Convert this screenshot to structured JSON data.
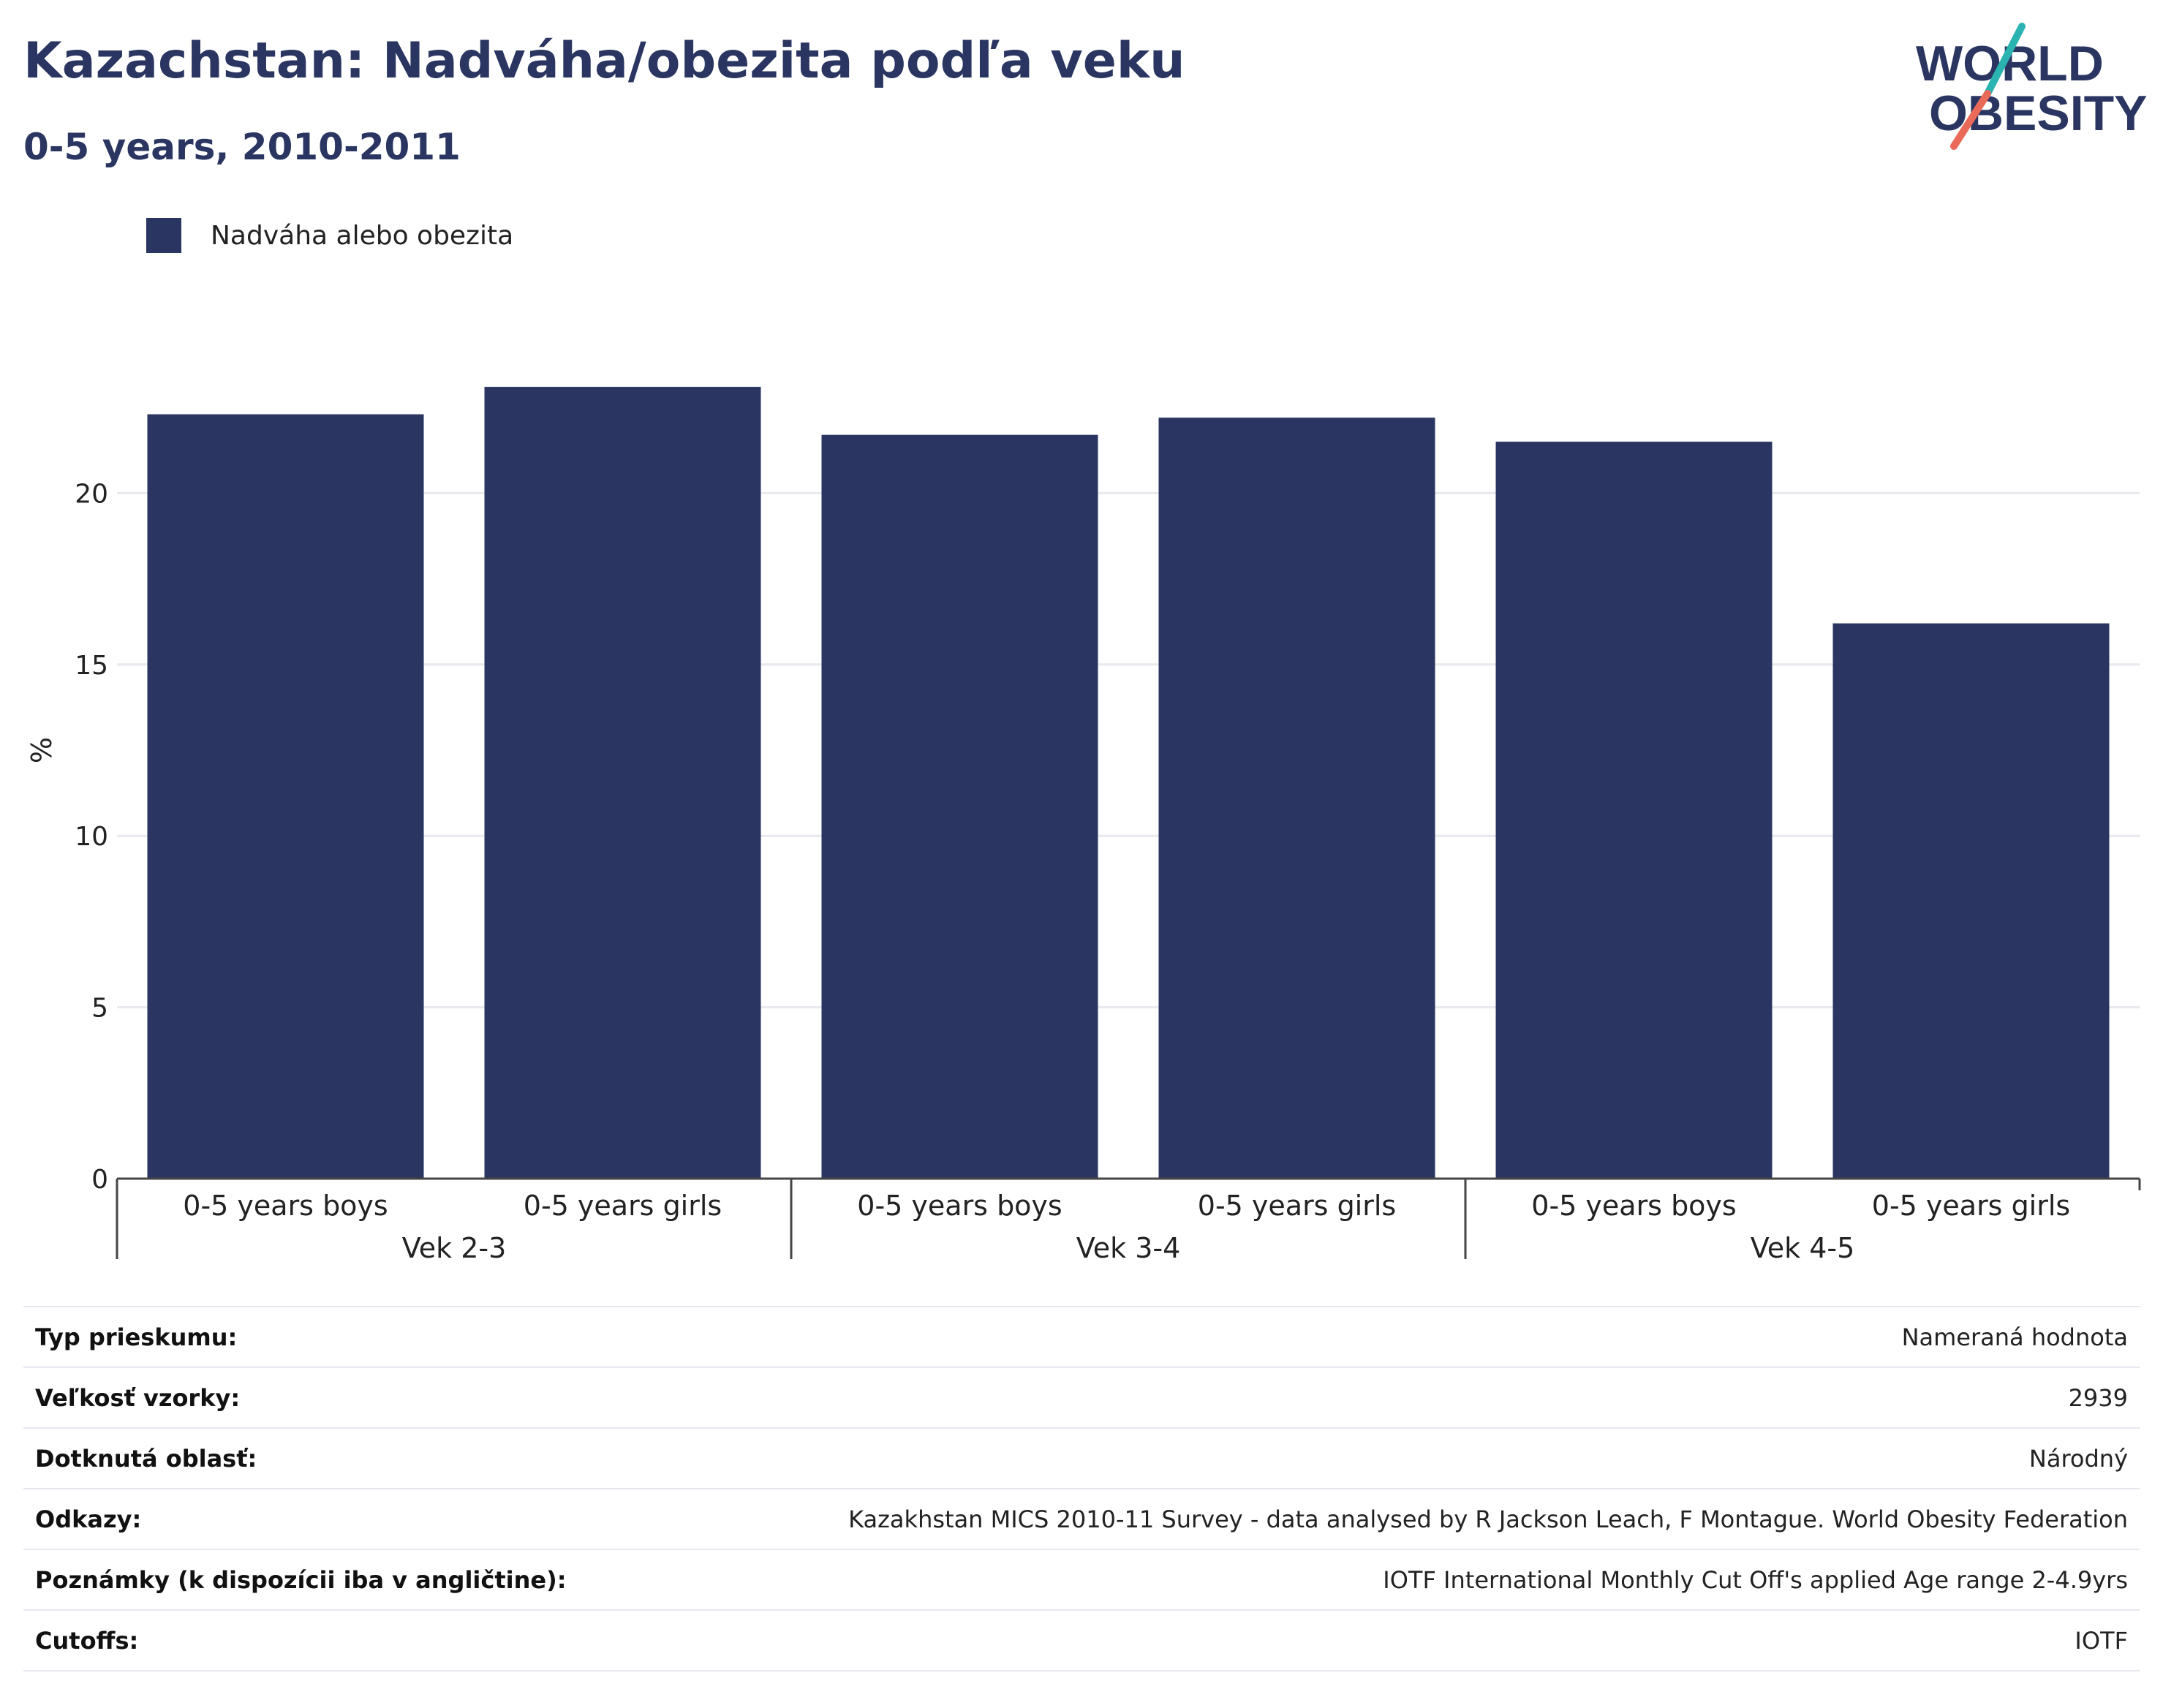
{
  "header": {
    "title": "Kazachstan: Nadváha/obezita podľa veku",
    "subtitle": "0-5 years, 2010-2011",
    "logo": {
      "line1": "WORLD",
      "line2": "OBESITY",
      "icon": "world-obesity-logo"
    }
  },
  "colors": {
    "bar": "#2a3661",
    "title": "#2a3661",
    "logo_teal": "#2bb3b1",
    "logo_coral": "#ea6a5a"
  },
  "chart_data": {
    "type": "bar",
    "title": "Kazachstan: Nadváha/obezita podľa veku",
    "subtitle": "0-5 years, 2010-2011",
    "ylabel": "%",
    "xlabel": "",
    "ylim": [
      0,
      25
    ],
    "yticks": [
      0,
      5,
      10,
      15,
      20
    ],
    "grid": true,
    "legend_position": "top-left",
    "categories": [
      "0-5 years boys",
      "0-5 years girls",
      "0-5 years boys",
      "0-5 years girls",
      "0-5 years boys",
      "0-5 years girls"
    ],
    "groups": [
      {
        "label": "Vek 2-3",
        "size": 2
      },
      {
        "label": "Vek 3-4",
        "size": 2
      },
      {
        "label": "Vek 4-5",
        "size": 2
      }
    ],
    "series": [
      {
        "name": "Nadváha alebo obezita",
        "values": [
          22.3,
          23.1,
          21.7,
          22.2,
          21.5,
          16.2
        ]
      }
    ]
  },
  "info_rows": [
    {
      "key": "Typ prieskumu:",
      "value": "Nameraná hodnota"
    },
    {
      "key": "Veľkosť vzorky:",
      "value": "2939"
    },
    {
      "key": "Dotknutá oblasť:",
      "value": "Národný"
    },
    {
      "key": "Odkazy:",
      "value": "Kazakhstan MICS 2010-11 Survey - data analysed by R Jackson Leach, F Montague. World Obesity Federation"
    },
    {
      "key": "Poznámky (k dispozícii iba v angličtine):",
      "value": "IOTF International Monthly Cut Off's applied Age range 2-4.9yrs"
    },
    {
      "key": "Cutoffs:",
      "value": "IOTF"
    }
  ]
}
